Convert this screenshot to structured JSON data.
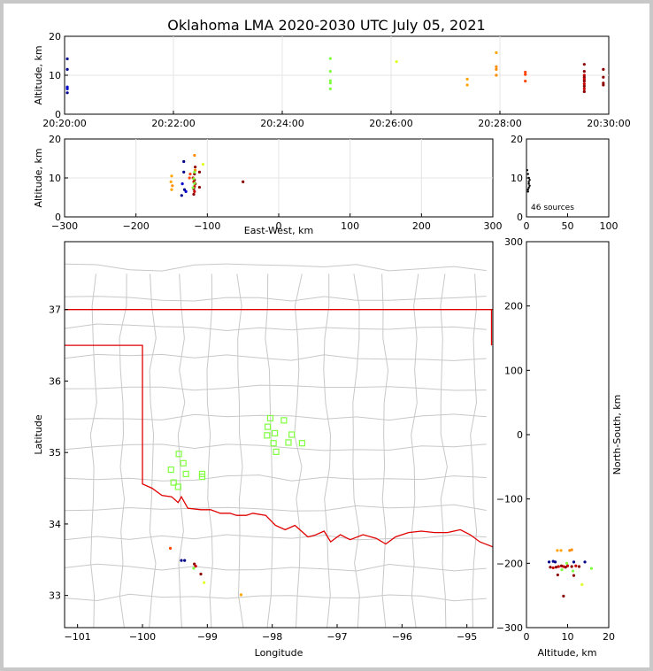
{
  "title": "Oklahoma LMA 2020-2030 UTC July 05, 2021",
  "colors": {
    "state_border": "#e00000",
    "county_lines": "#c8c8c8",
    "grid": "#e4e4e4",
    "station_marker": "#7fff3f"
  },
  "chart_data": [
    {
      "id": "time_height",
      "type": "scatter",
      "ylabel": "Altitude, km",
      "ylim": [
        0,
        20
      ],
      "yticks": [
        "0",
        "10",
        "20"
      ],
      "xticks": [
        "20:20:00",
        "20:22:00",
        "20:24:00",
        "20:26:00",
        "20:28:00",
        "20:30:00"
      ],
      "xlim_seconds_after_2020": [
        0,
        600
      ],
      "grid": true,
      "points": [
        {
          "t": 3,
          "alt": 14.2,
          "c": "#00008b"
        },
        {
          "t": 3,
          "alt": 11.5,
          "c": "#00008b"
        },
        {
          "t": 3,
          "alt": 7.0,
          "c": "#0000cd"
        },
        {
          "t": 3,
          "alt": 5.5,
          "c": "#00008b"
        },
        {
          "t": 3,
          "alt": 6.5,
          "c": "#0000cd"
        },
        {
          "t": 293,
          "alt": 14.3,
          "c": "#7fff3f"
        },
        {
          "t": 293,
          "alt": 11.0,
          "c": "#7fff3f"
        },
        {
          "t": 293,
          "alt": 8.6,
          "c": "#7fff3f"
        },
        {
          "t": 293,
          "alt": 8.0,
          "c": "#7fff3f"
        },
        {
          "t": 293,
          "alt": 6.5,
          "c": "#7fff3f"
        },
        {
          "t": 366,
          "alt": 13.5,
          "c": "#e0ff20"
        },
        {
          "t": 444,
          "alt": 9.0,
          "c": "#ffa500"
        },
        {
          "t": 444,
          "alt": 7.5,
          "c": "#ffa500"
        },
        {
          "t": 476,
          "alt": 15.8,
          "c": "#ffa500"
        },
        {
          "t": 476,
          "alt": 12.2,
          "c": "#ff8c00"
        },
        {
          "t": 476,
          "alt": 11.5,
          "c": "#ff8c00"
        },
        {
          "t": 476,
          "alt": 10.0,
          "c": "#ff8c00"
        },
        {
          "t": 508,
          "alt": 10.8,
          "c": "#ff4500"
        },
        {
          "t": 508,
          "alt": 10.2,
          "c": "#ff4500"
        },
        {
          "t": 508,
          "alt": 8.5,
          "c": "#ff4500"
        },
        {
          "t": 573,
          "alt": 12.8,
          "c": "#8b0000"
        },
        {
          "t": 573,
          "alt": 11.0,
          "c": "#8b0000"
        },
        {
          "t": 573,
          "alt": 10.0,
          "c": "#cc0000"
        },
        {
          "t": 573,
          "alt": 9.5,
          "c": "#8b0000"
        },
        {
          "t": 573,
          "alt": 9.0,
          "c": "#cc0000"
        },
        {
          "t": 573,
          "alt": 8.5,
          "c": "#8b0000"
        },
        {
          "t": 573,
          "alt": 7.8,
          "c": "#cc0000"
        },
        {
          "t": 573,
          "alt": 7.2,
          "c": "#8b0000"
        },
        {
          "t": 573,
          "alt": 6.5,
          "c": "#cc0000"
        },
        {
          "t": 573,
          "alt": 5.8,
          "c": "#8b0000"
        },
        {
          "t": 594,
          "alt": 11.5,
          "c": "#8b0000"
        },
        {
          "t": 594,
          "alt": 9.5,
          "c": "#8b0000"
        },
        {
          "t": 594,
          "alt": 8.0,
          "c": "#8b0000"
        },
        {
          "t": 594,
          "alt": 7.5,
          "c": "#8b0000"
        }
      ]
    },
    {
      "id": "ew_height",
      "type": "scatter",
      "xlabel": "East-West, km",
      "ylabel": "Altitude, km",
      "xlim": [
        -300,
        300
      ],
      "ylim": [
        0,
        20
      ],
      "xticks": [
        "−300",
        "−200",
        "−100",
        "0",
        "100",
        "200",
        "300"
      ],
      "yticks": [
        "0",
        "10",
        "20"
      ],
      "grid": true,
      "points": [
        {
          "x": -133,
          "alt": 14.2,
          "c": "#00008b"
        },
        {
          "x": -133,
          "alt": 11.5,
          "c": "#00008b"
        },
        {
          "x": -135,
          "alt": 8.5,
          "c": "#0000cd"
        },
        {
          "x": -132,
          "alt": 7.0,
          "c": "#00008b"
        },
        {
          "x": -130,
          "alt": 6.5,
          "c": "#0000cd"
        },
        {
          "x": -136,
          "alt": 5.5,
          "c": "#00008b"
        },
        {
          "x": -150,
          "alt": 10.5,
          "c": "#ffa500"
        },
        {
          "x": -151,
          "alt": 9.0,
          "c": "#ffa500"
        },
        {
          "x": -149,
          "alt": 8.0,
          "c": "#ff8c00"
        },
        {
          "x": -150,
          "alt": 7.0,
          "c": "#ffa500"
        },
        {
          "x": -118,
          "alt": 15.8,
          "c": "#ff8c00"
        },
        {
          "x": -117,
          "alt": 12.8,
          "c": "#8b0000"
        },
        {
          "x": -117,
          "alt": 12.0,
          "c": "#ff8c00"
        },
        {
          "x": -118,
          "alt": 11.0,
          "c": "#8b0000"
        },
        {
          "x": -120,
          "alt": 10.0,
          "c": "#cc0000"
        },
        {
          "x": -118,
          "alt": 9.5,
          "c": "#8b0000"
        },
        {
          "x": -119,
          "alt": 9.0,
          "c": "#cc0000"
        },
        {
          "x": -117,
          "alt": 8.5,
          "c": "#8b0000"
        },
        {
          "x": -118,
          "alt": 7.8,
          "c": "#cc0000"
        },
        {
          "x": -119,
          "alt": 7.2,
          "c": "#8b0000"
        },
        {
          "x": -118,
          "alt": 6.5,
          "c": "#cc0000"
        },
        {
          "x": -119,
          "alt": 5.8,
          "c": "#8b0000"
        },
        {
          "x": -118,
          "alt": 11.5,
          "c": "#7fff3f"
        },
        {
          "x": -119,
          "alt": 9.8,
          "c": "#7fff3f"
        },
        {
          "x": -118,
          "alt": 8.6,
          "c": "#7fff3f"
        },
        {
          "x": -120,
          "alt": 7.5,
          "c": "#7fff3f"
        },
        {
          "x": -106,
          "alt": 13.5,
          "c": "#e0ff20"
        },
        {
          "x": -111,
          "alt": 11.5,
          "c": "#8b0000"
        },
        {
          "x": -111,
          "alt": 7.6,
          "c": "#8b0000"
        },
        {
          "x": -124,
          "alt": 11.0,
          "c": "#ff4500"
        },
        {
          "x": -125,
          "alt": 10.0,
          "c": "#ff4500"
        },
        {
          "x": -50,
          "alt": 9.0,
          "c": "#8b0000"
        }
      ]
    },
    {
      "id": "histogram",
      "type": "scatter",
      "xlim": [
        0,
        100
      ],
      "ylim": [
        0,
        20
      ],
      "xticks": [
        "0",
        "50",
        "100"
      ],
      "yticks": [
        "0",
        "10",
        "20"
      ],
      "annotation": "46 sources",
      "points": [
        {
          "n": 0,
          "alt": 12
        },
        {
          "n": 1,
          "alt": 11
        },
        {
          "n": 2,
          "alt": 10
        },
        {
          "n": 3,
          "alt": 9.5
        },
        {
          "n": 2,
          "alt": 9
        },
        {
          "n": 2,
          "alt": 8.5
        },
        {
          "n": 3,
          "alt": 8
        },
        {
          "n": 2,
          "alt": 7.5
        },
        {
          "n": 1,
          "alt": 7
        },
        {
          "n": 1,
          "alt": 6.5
        }
      ]
    },
    {
      "id": "plan_view",
      "type": "scatter",
      "xlabel": "Longitude",
      "ylabel": "Latitude",
      "xlim": [
        -101.2,
        -94.6
      ],
      "ylim": [
        32.55,
        37.95
      ],
      "xticks": [
        "−101",
        "−100",
        "−99",
        "−98",
        "−97",
        "−96",
        "−95"
      ],
      "yticks": [
        "33",
        "34",
        "35",
        "36",
        "37"
      ],
      "stations": [
        {
          "lon": -98.03,
          "lat": 35.48
        },
        {
          "lon": -98.07,
          "lat": 35.36
        },
        {
          "lon": -98.08,
          "lat": 35.24
        },
        {
          "lon": -97.96,
          "lat": 35.27
        },
        {
          "lon": -97.82,
          "lat": 35.45
        },
        {
          "lon": -97.7,
          "lat": 35.25
        },
        {
          "lon": -97.75,
          "lat": 35.14
        },
        {
          "lon": -97.98,
          "lat": 35.13
        },
        {
          "lon": -97.54,
          "lat": 35.13
        },
        {
          "lon": -97.94,
          "lat": 35.01
        },
        {
          "lon": -99.44,
          "lat": 34.98
        },
        {
          "lon": -99.37,
          "lat": 34.85
        },
        {
          "lon": -99.56,
          "lat": 34.76
        },
        {
          "lon": -99.33,
          "lat": 34.7
        },
        {
          "lon": -99.08,
          "lat": 34.7
        },
        {
          "lon": -99.08,
          "lat": 34.66
        },
        {
          "lon": -99.52,
          "lat": 34.58
        },
        {
          "lon": -99.45,
          "lat": 34.52
        }
      ],
      "points": [
        {
          "lon": -99.57,
          "lat": 33.66,
          "c": "#ff4500"
        },
        {
          "lon": -99.4,
          "lat": 33.49,
          "c": "#00008b"
        },
        {
          "lon": -99.35,
          "lat": 33.49,
          "c": "#00008b"
        },
        {
          "lon": -99.2,
          "lat": 33.44,
          "c": "#8b0000"
        },
        {
          "lon": -99.18,
          "lat": 33.41,
          "c": "#cc0000"
        },
        {
          "lon": -99.21,
          "lat": 33.38,
          "c": "#7fff3f"
        },
        {
          "lon": -99.1,
          "lat": 33.3,
          "c": "#8b0000"
        },
        {
          "lon": -99.05,
          "lat": 33.18,
          "c": "#e0ff20"
        },
        {
          "lon": -98.48,
          "lat": 33.01,
          "c": "#ffa500"
        }
      ]
    },
    {
      "id": "ns_height",
      "type": "scatter",
      "ylabel": "North-South, km",
      "xlabel": "Altitude, km",
      "xlim": [
        0,
        20
      ],
      "ylim": [
        -300,
        300
      ],
      "xticks": [
        "0",
        "10",
        "20"
      ],
      "yticks": [
        "−300",
        "−200",
        "−100",
        "0",
        "100",
        "200",
        "300"
      ],
      "points": [
        {
          "alt": 14.2,
          "y": -198,
          "c": "#00008b"
        },
        {
          "alt": 11.5,
          "y": -198,
          "c": "#00008b"
        },
        {
          "alt": 7.0,
          "y": -198,
          "c": "#00008b"
        },
        {
          "alt": 6.5,
          "y": -197,
          "c": "#00008b"
        },
        {
          "alt": 5.5,
          "y": -198,
          "c": "#00008b"
        },
        {
          "alt": 15.8,
          "y": -208,
          "c": "#7fff3f"
        },
        {
          "alt": 9.8,
          "y": -200,
          "c": "#7fff3f"
        },
        {
          "alt": 8.6,
          "y": -210,
          "c": "#7fff3f"
        },
        {
          "alt": 11.3,
          "y": -212,
          "c": "#7fff3f"
        },
        {
          "alt": 13.5,
          "y": -233,
          "c": "#e0ff20"
        },
        {
          "alt": 7.5,
          "y": -180,
          "c": "#ffa500"
        },
        {
          "alt": 8.4,
          "y": -180,
          "c": "#ffa500"
        },
        {
          "alt": 10.5,
          "y": -180,
          "c": "#ff8c00"
        },
        {
          "alt": 11.0,
          "y": -179,
          "c": "#ff8c00"
        },
        {
          "alt": 12.8,
          "y": -205,
          "c": "#8b0000"
        },
        {
          "alt": 12.0,
          "y": -204,
          "c": "#cc0000"
        },
        {
          "alt": 11.0,
          "y": -205,
          "c": "#8b0000"
        },
        {
          "alt": 10.0,
          "y": -204,
          "c": "#cc0000"
        },
        {
          "alt": 9.5,
          "y": -206,
          "c": "#8b0000"
        },
        {
          "alt": 9.0,
          "y": -205,
          "c": "#cc0000"
        },
        {
          "alt": 8.5,
          "y": -204,
          "c": "#8b0000"
        },
        {
          "alt": 7.8,
          "y": -205,
          "c": "#cc0000"
        },
        {
          "alt": 7.2,
          "y": -206,
          "c": "#8b0000"
        },
        {
          "alt": 6.5,
          "y": -207,
          "c": "#cc0000"
        },
        {
          "alt": 5.8,
          "y": -206,
          "c": "#8b0000"
        },
        {
          "alt": 7.6,
          "y": -218,
          "c": "#8b0000"
        },
        {
          "alt": 11.5,
          "y": -219,
          "c": "#8b0000"
        },
        {
          "alt": 9.0,
          "y": -251,
          "c": "#8b0000"
        }
      ]
    }
  ]
}
